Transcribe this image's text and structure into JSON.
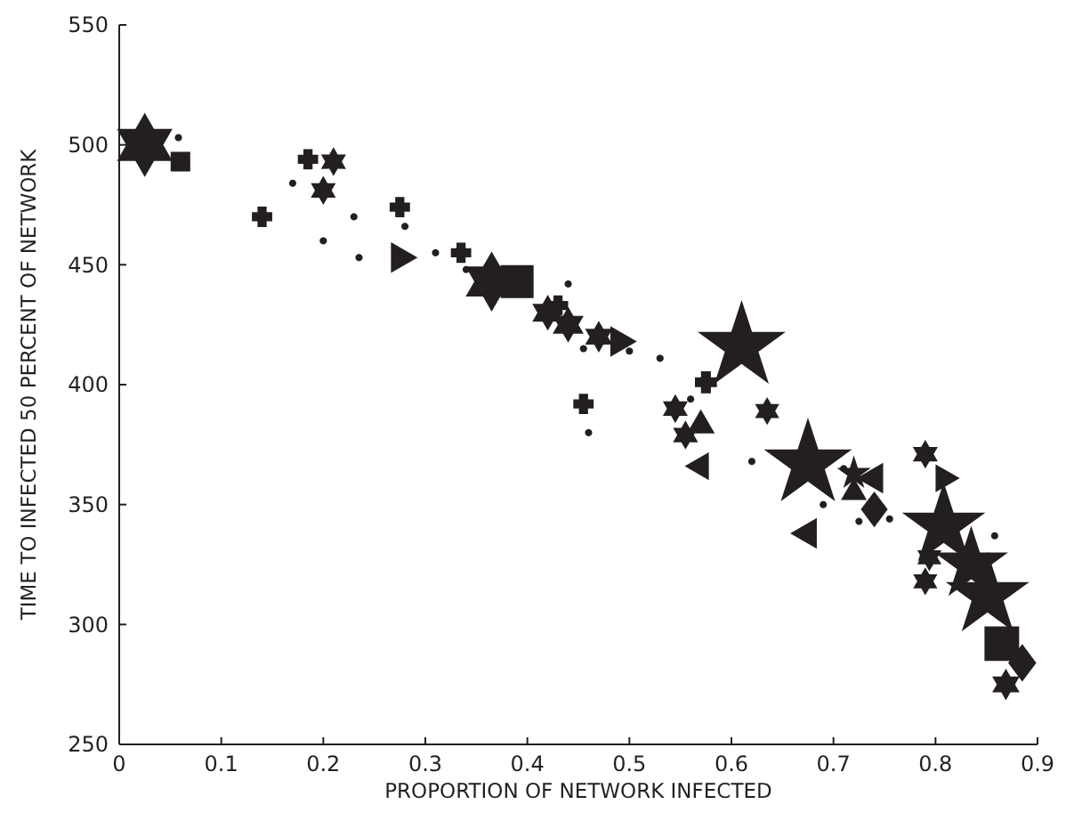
{
  "chart_data": {
    "type": "bubble",
    "xlabel": "PROPORTION OF NETWORK INFECTED",
    "ylabel": "TIME TO INFECTED 50 PERCENT OF NETWORK",
    "xlim": [
      0,
      0.9
    ],
    "xticks": [
      0,
      0.1,
      0.2,
      0.3,
      0.4,
      0.5,
      0.6,
      0.7,
      0.8,
      0.9
    ],
    "ylim": [
      250,
      550
    ],
    "yticks": [
      250,
      300,
      350,
      400,
      450,
      500,
      550
    ],
    "series": [
      {
        "color": "#231f20",
        "x": [
          0.025,
          0.2,
          0.21,
          0.365,
          0.42,
          0.44,
          0.47,
          0.545,
          0.555,
          0.635,
          0.79,
          0.79,
          0.794,
          0.869
        ],
        "values": [
          500,
          481,
          493,
          443,
          430,
          425,
          420,
          390,
          379,
          389,
          371,
          318,
          328,
          275
        ],
        "sizes": [
          0.74,
          0.15,
          0.15,
          0.65,
          0.23,
          0.23,
          0.18,
          0.15,
          0.15,
          0.14,
          0.15,
          0.14,
          0.14,
          0.18
        ]
      },
      {
        "marker": "star",
        "color": "#231f20",
        "x": [
          0.61,
          0.675,
          0.808,
          0.851,
          0.835,
          0.72
        ],
        "values": [
          416,
          367,
          341,
          312,
          325,
          363
        ],
        "sizes": [
          1,
          1,
          0.9,
          0.9,
          0.7,
          0.15
        ]
      },
      {
        "marker": "square",
        "color": "#231f20",
        "x": [
          0.06,
          0.39,
          0.865
        ],
        "values": [
          493,
          443,
          292
        ],
        "sizes": [
          0.16,
          0.45,
          0.5
        ]
      },
      {
        "marker": "cross",
        "color": "#231f20",
        "x": [
          0.14,
          0.185,
          0.275,
          0.335,
          0.455,
          0.575,
          0.43
        ],
        "values": [
          470,
          494,
          474,
          455,
          392,
          401,
          433
        ],
        "sizes": [
          0.12,
          0.12,
          0.12,
          0.12,
          0.12,
          0.14,
          0.12
        ]
      },
      {
        "marker": "triangle",
        "color": "#231f20",
        "x": [
          0.275,
          0.49,
          0.808
        ],
        "values": [
          453,
          418,
          361
        ],
        "sizes": [
          0.17,
          0.17,
          0.14
        ]
      },
      {
        "marker": "triangle",
        "color": "#231f20",
        "x": [
          0.57,
          0.675,
          0.74
        ],
        "values": [
          366,
          338,
          361
        ],
        "sizes": [
          0.14,
          0.17,
          0.17
        ]
      },
      {
        "marker": "triangle",
        "color": "#231f20",
        "x": [
          0.57,
          0.72
        ],
        "values": [
          383,
          355
        ],
        "sizes": [
          0.14,
          0.12
        ]
      },
      {
        "marker": "diamond",
        "color": "#231f20",
        "x": [
          0.74,
          0.885
        ],
        "values": [
          348,
          284
        ],
        "sizes": [
          0.2,
          0.22
        ]
      },
      {
        "type": "scatter",
        "marker": "circle",
        "color": "#231f20",
        "x": [
          0.058,
          0.17,
          0.2,
          0.23,
          0.235,
          0.28,
          0.31,
          0.34,
          0.44,
          0.5,
          0.53,
          0.46,
          0.455,
          0.56,
          0.62,
          0.71,
          0.69,
          0.725,
          0.858,
          0.755
        ],
        "values": [
          503,
          484,
          460,
          470,
          453,
          466,
          455,
          448,
          442,
          414,
          411,
          380,
          415,
          394,
          368,
          365,
          350,
          343,
          337,
          344
        ]
      }
    ]
  }
}
